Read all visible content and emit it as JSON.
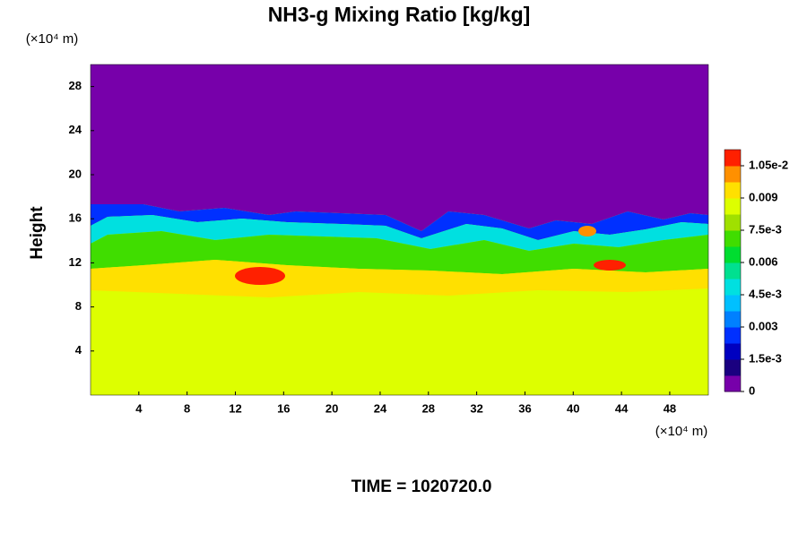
{
  "chart_data": {
    "type": "heatmap",
    "title": "NH3-g Mixing Ratio [kg/kg]",
    "ylabel": "Height",
    "x_unit": "(×10⁴ m)",
    "y_unit": "(×10⁴ m)",
    "footer": "TIME = 1020720.0",
    "xlim": [
      0,
      51.2
    ],
    "xticks": [
      4,
      8,
      12,
      16,
      20,
      24,
      28,
      32,
      36,
      40,
      44,
      48
    ],
    "ylim": [
      0,
      30
    ],
    "yticks": [
      4,
      8,
      12,
      16,
      20,
      24,
      28
    ],
    "zlim": [
      0,
      0.01125
    ],
    "zticks": [
      0,
      {
        "value": 0.0015,
        "label": "1.5e-3"
      },
      0.003,
      {
        "value": 0.0045,
        "label": "4.5e-3"
      },
      0.006,
      {
        "value": 0.0075,
        "label": "7.5e-3"
      },
      0.009,
      {
        "value": 0.0105,
        "label": "1.05e-2"
      }
    ],
    "colors": [
      "#7700aa",
      "#1a0080",
      "#0000c0",
      "#0030ff",
      "#0080ff",
      "#00c0ff",
      "#00e0e0",
      "#00e090",
      "#00dd30",
      "#40dd00",
      "#a0e000",
      "#ddff00",
      "#ffe000",
      "#ff9000",
      "#ff2000"
    ]
  }
}
